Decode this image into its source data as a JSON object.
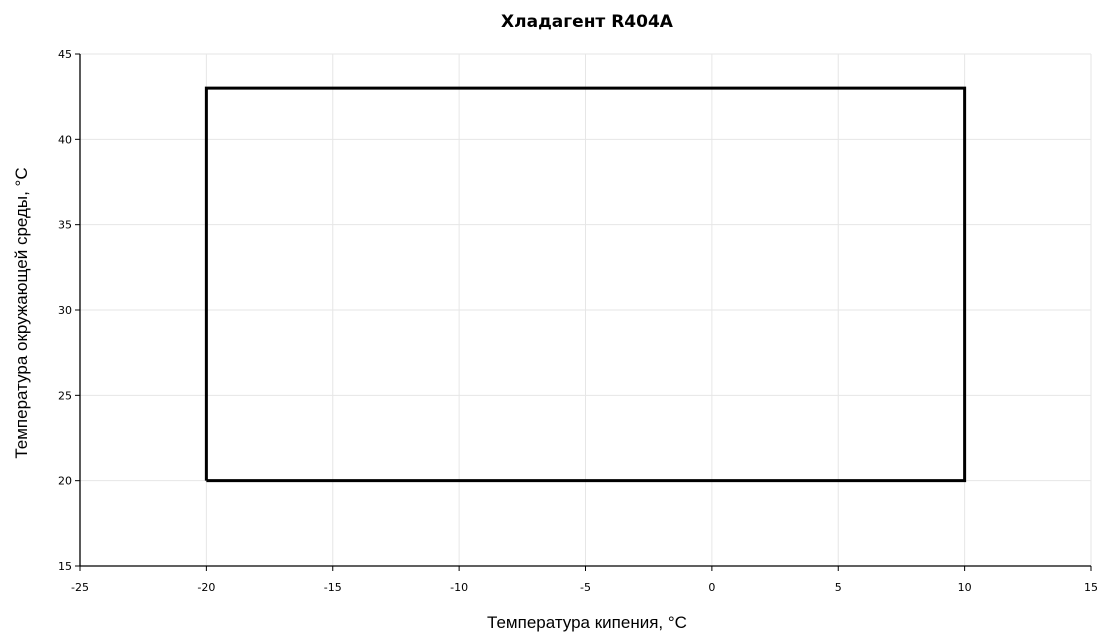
{
  "chart_data": {
    "type": "line",
    "title": "Хладагент R404A",
    "xlabel": "Температура кипения, °C",
    "ylabel": "Температура окружающей среды, °C",
    "xlim": [
      -25,
      15
    ],
    "ylim": [
      15,
      45
    ],
    "x_ticks": [
      -25,
      -20,
      -15,
      -10,
      -5,
      0,
      5,
      10,
      15
    ],
    "y_ticks": [
      15,
      20,
      25,
      30,
      35,
      40,
      45
    ],
    "grid": true,
    "legend": "none",
    "series": [
      {
        "color": "#000000",
        "points": [
          {
            "x": -20,
            "y": 20
          },
          {
            "x": -20,
            "y": 43
          },
          {
            "x": 10,
            "y": 43
          },
          {
            "x": 10,
            "y": 20
          },
          {
            "x": -20,
            "y": 20
          }
        ]
      }
    ],
    "colors": {
      "grid": "#e6e6e6",
      "axis": "#000000",
      "series": "#000000"
    }
  }
}
